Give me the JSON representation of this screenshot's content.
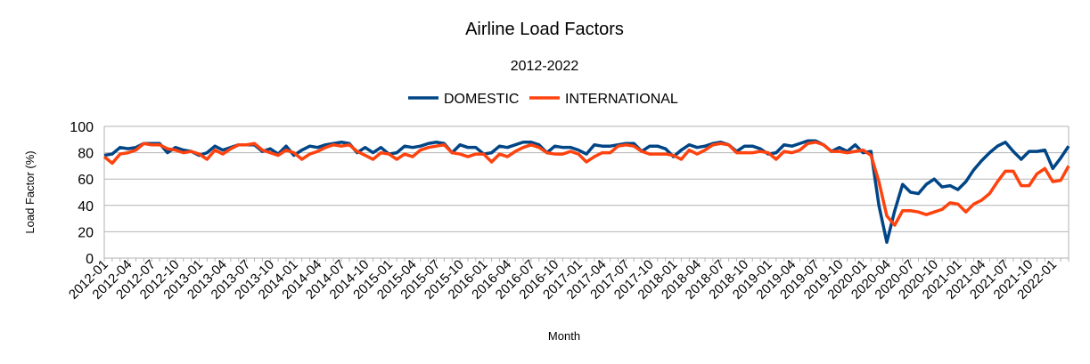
{
  "chart_data": {
    "type": "line",
    "title": "Airline Load Factors",
    "subtitle": "2012-2022",
    "xlabel": "Month",
    "ylabel": "Load Factor (%)",
    "ylim": [
      0,
      100
    ],
    "yticks": [
      0,
      20,
      40,
      60,
      80,
      100
    ],
    "grid": true,
    "legend_position": "top-center",
    "x_start": "2012-01",
    "x_tick_labels": [
      "2012-01",
      "2012-04",
      "2012-07",
      "2012-10",
      "2013-01",
      "2013-04",
      "2013-07",
      "2013-10",
      "2014-01",
      "2014-04",
      "2014-07",
      "2014-10",
      "2015-01",
      "2015-04",
      "2015-07",
      "2015-10",
      "2016-01",
      "2016-04",
      "2016-07",
      "2016-10",
      "2017-01",
      "2017-04",
      "2017-07",
      "2017-10",
      "2018-01",
      "2018-04",
      "2018-07",
      "2018-10",
      "2019-01",
      "2019-04",
      "2019-07",
      "2019-10",
      "2020-01",
      "2020-04",
      "2020-07",
      "2020-10",
      "2021-01",
      "2021-04",
      "2021-07",
      "2021-10",
      "2022-01"
    ],
    "series": [
      {
        "name": "DOMESTIC",
        "color": "#004586",
        "values": [
          78,
          79,
          84,
          83,
          84,
          87,
          87,
          87,
          80,
          84,
          82,
          81,
          78,
          80,
          85,
          82,
          84,
          86,
          86,
          86,
          81,
          83,
          79,
          85,
          78,
          82,
          85,
          84,
          86,
          87,
          88,
          87,
          80,
          84,
          80,
          84,
          79,
          80,
          85,
          84,
          85,
          87,
          88,
          87,
          80,
          86,
          84,
          84,
          79,
          80,
          85,
          84,
          86,
          88,
          88,
          86,
          80,
          85,
          84,
          84,
          82,
          79,
          86,
          85,
          85,
          86,
          87,
          87,
          81,
          85,
          85,
          83,
          77,
          82,
          86,
          84,
          85,
          87,
          88,
          86,
          81,
          85,
          85,
          83,
          79,
          80,
          86,
          85,
          87,
          89,
          89,
          86,
          81,
          84,
          81,
          86,
          80,
          81,
          40,
          12,
          36,
          56,
          50,
          49,
          56,
          60,
          54,
          55,
          52,
          58,
          67,
          74,
          80,
          85,
          88,
          81,
          75,
          81,
          81,
          82,
          68,
          76,
          85
        ]
      },
      {
        "name": "INTERNATIONAL",
        "color": "#ff420e",
        "values": [
          77,
          72,
          79,
          80,
          82,
          87,
          86,
          86,
          83,
          82,
          80,
          81,
          79,
          75,
          82,
          79,
          83,
          86,
          86,
          87,
          82,
          80,
          78,
          82,
          80,
          75,
          79,
          81,
          84,
          86,
          85,
          86,
          81,
          78,
          75,
          80,
          79,
          75,
          79,
          77,
          82,
          84,
          85,
          86,
          80,
          79,
          77,
          79,
          79,
          73,
          79,
          77,
          81,
          84,
          86,
          84,
          80,
          79,
          79,
          81,
          79,
          73,
          77,
          80,
          80,
          85,
          86,
          85,
          81,
          79,
          79,
          79,
          78,
          75,
          82,
          79,
          82,
          86,
          87,
          86,
          80,
          80,
          80,
          81,
          80,
          75,
          81,
          80,
          82,
          87,
          88,
          86,
          81,
          81,
          80,
          81,
          82,
          78,
          58,
          32,
          25,
          36,
          36,
          35,
          33,
          35,
          37,
          42,
          41,
          35,
          41,
          44,
          49,
          58,
          66,
          66,
          55,
          55,
          64,
          68,
          58,
          59,
          70
        ]
      }
    ]
  }
}
